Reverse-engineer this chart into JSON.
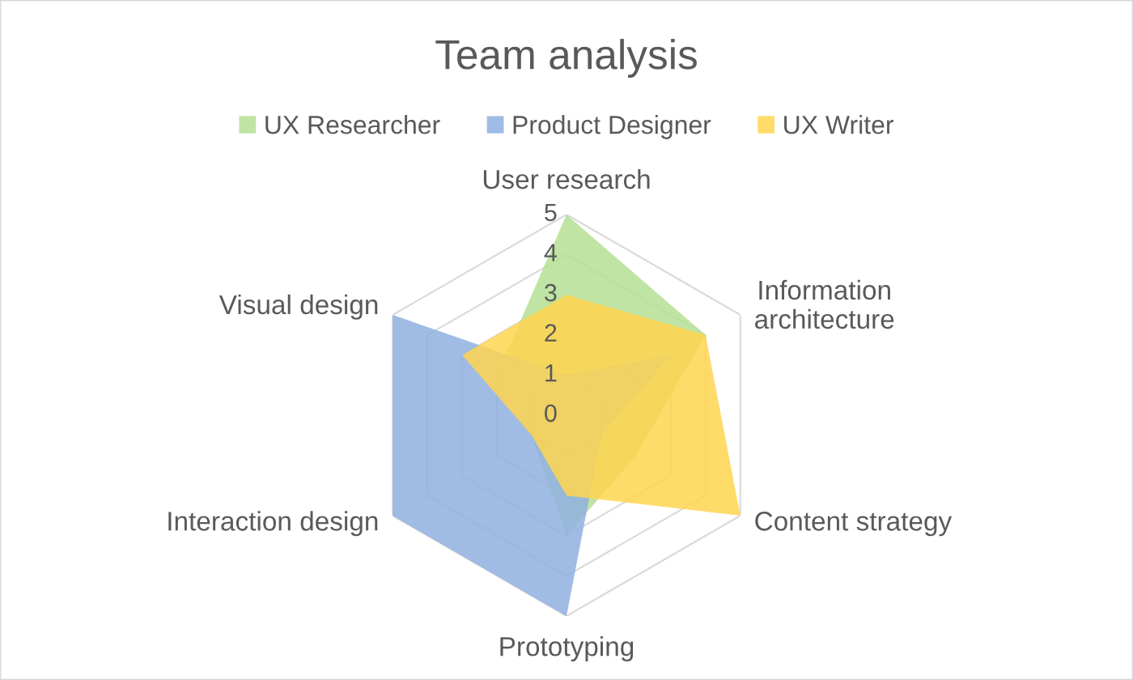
{
  "chart_data": {
    "type": "radar",
    "title": "Team analysis",
    "categories": [
      "User research",
      "Information\narchitecture",
      "Content strategy",
      "Prototyping",
      "Interaction design",
      "Visual design"
    ],
    "series": [
      {
        "name": "UX Researcher",
        "color": "#b5df94",
        "values": [
          5,
          4,
          2,
          3,
          1,
          2
        ]
      },
      {
        "name": "Product Designer",
        "color": "#8fb0e0",
        "values": [
          1,
          3,
          1,
          5,
          5,
          5
        ]
      },
      {
        "name": "UX Writer",
        "color": "#ffd54f",
        "values": [
          3,
          4,
          5,
          2,
          1,
          3
        ]
      }
    ],
    "ylim": [
      0,
      5
    ],
    "yticks": [
      0,
      1,
      2,
      3,
      4,
      5
    ],
    "grid": true,
    "legend": "top"
  }
}
